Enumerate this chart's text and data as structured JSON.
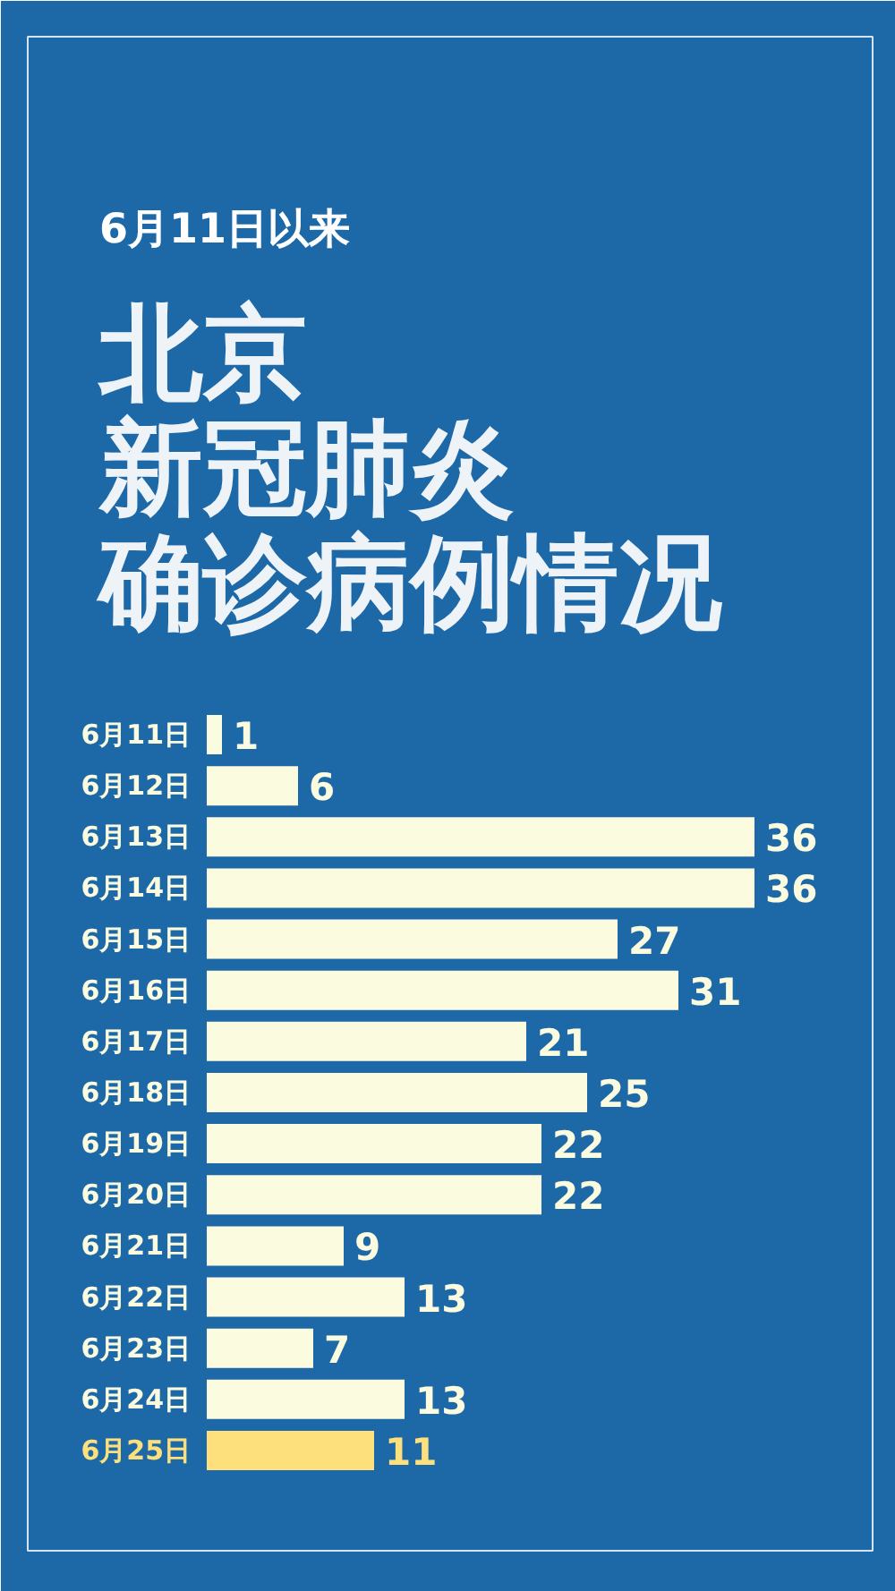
{
  "chart_data": {
    "type": "bar",
    "orientation": "horizontal",
    "subtitle": "6月11日以来",
    "title": "北京新冠肺炎确诊病例情况",
    "categories": [
      "6月11日",
      "6月12日",
      "6月13日",
      "6月14日",
      "6月15日",
      "6月16日",
      "6月17日",
      "6月18日",
      "6月19日",
      "6月20日",
      "6月21日",
      "6月22日",
      "6月23日",
      "6月24日",
      "6月25日"
    ],
    "values": [
      1,
      6,
      36,
      36,
      27,
      31,
      21,
      25,
      22,
      22,
      9,
      13,
      7,
      13,
      11
    ],
    "colors": [
      "#fbfbdf",
      "#fbfbdf",
      "#fbfbdf",
      "#fbfbdf",
      "#fbfbdf",
      "#fbfbdf",
      "#fbfbdf",
      "#fbfbdf",
      "#fbfbdf",
      "#fbfbdf",
      "#fbfbdf",
      "#fbfbdf",
      "#fbfbdf",
      "#fbfbdf",
      "#fde07c"
    ],
    "data_labels": true
  }
}
